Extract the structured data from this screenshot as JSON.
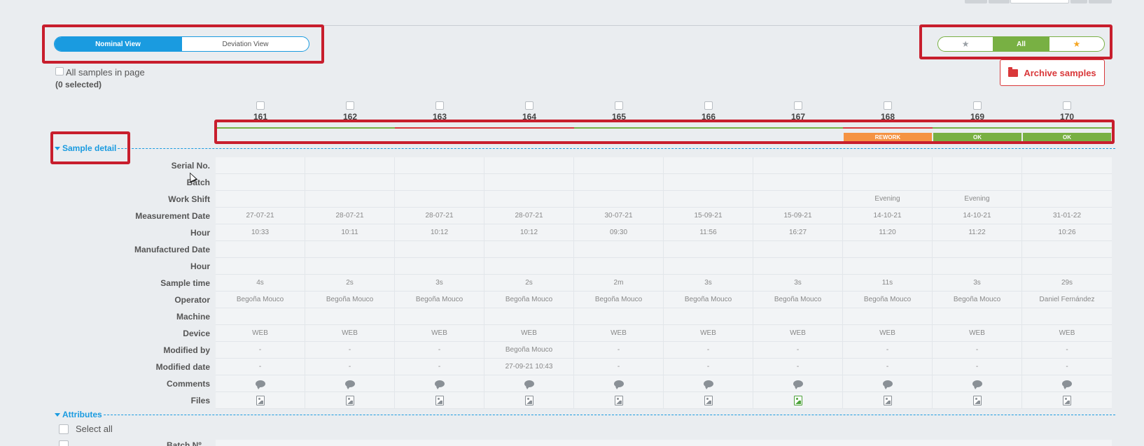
{
  "view_toggle": {
    "nominal": "Nominal View",
    "deviation": "Deviation View"
  },
  "fav_toggle": {
    "unstarred_icon": "star-icon",
    "all": "All",
    "starred_icon": "star-icon"
  },
  "selection": {
    "all_label": "All samples in page",
    "count_label": "(0 selected)"
  },
  "archive": {
    "label": "Archive samples",
    "icon": "folder-open-icon",
    "color": "#d9383a"
  },
  "columns": [
    "161",
    "162",
    "163",
    "164",
    "165",
    "166",
    "167",
    "168",
    "169",
    "170"
  ],
  "status": [
    {
      "line": "#78b043",
      "badge": ""
    },
    {
      "line": "#78b043",
      "badge": ""
    },
    {
      "line": "#d9383a",
      "badge": ""
    },
    {
      "line": "#d9383a",
      "badge": ""
    },
    {
      "line": "#78b043",
      "badge": ""
    },
    {
      "line": "#78b043",
      "badge": ""
    },
    {
      "line": "#78b043",
      "badge": ""
    },
    {
      "line": "#d9383a",
      "badge": "REWORK",
      "badge_color": "#f59342"
    },
    {
      "line": "#78b043",
      "badge": "OK",
      "badge_color": "#78b043"
    },
    {
      "line": "#78b043",
      "badge": "OK",
      "badge_color": "#78b043"
    }
  ],
  "section_sample_detail": "Sample detail",
  "section_attributes": "Attributes",
  "row_labels": [
    "Serial No.",
    "Batch",
    "Work Shift",
    "Measurement Date",
    "Hour",
    "Manufactured Date",
    "Hour",
    "Sample time",
    "Operator",
    "Machine",
    "Device",
    "Modified by",
    "Modified date",
    "Comments",
    "Files"
  ],
  "rows": {
    "serial": [
      "",
      "",
      "",
      "",
      "",
      "",
      "",
      "",
      "",
      ""
    ],
    "batch": [
      "",
      "",
      "",
      "",
      "",
      "",
      "",
      "",
      "",
      ""
    ],
    "shift": [
      "",
      "",
      "",
      "",
      "",
      "",
      "",
      "Evening",
      "Evening",
      ""
    ],
    "mdate": [
      "27-07-21",
      "28-07-21",
      "28-07-21",
      "28-07-21",
      "30-07-21",
      "15-09-21",
      "15-09-21",
      "14-10-21",
      "14-10-21",
      "31-01-22"
    ],
    "mhour": [
      "10:33",
      "10:11",
      "10:12",
      "10:12",
      "09:30",
      "11:56",
      "16:27",
      "11:20",
      "11:22",
      "10:26"
    ],
    "fdate": [
      "",
      "",
      "",
      "",
      "",
      "",
      "",
      "",
      "",
      ""
    ],
    "fhour": [
      "",
      "",
      "",
      "",
      "",
      "",
      "",
      "",
      "",
      ""
    ],
    "stime": [
      "4s",
      "2s",
      "3s",
      "2s",
      "2m",
      "3s",
      "3s",
      "11s",
      "3s",
      "29s"
    ],
    "operator": [
      "Begoña Mouco",
      "Begoña Mouco",
      "Begoña Mouco",
      "Begoña Mouco",
      "Begoña Mouco",
      "Begoña Mouco",
      "Begoña Mouco",
      "Begoña Mouco",
      "Begoña Mouco",
      "Daniel Fernández"
    ],
    "machine": [
      "",
      "",
      "",
      "",
      "",
      "",
      "",
      "",
      "",
      ""
    ],
    "device": [
      "WEB",
      "WEB",
      "WEB",
      "WEB",
      "WEB",
      "WEB",
      "WEB",
      "WEB",
      "WEB",
      "WEB"
    ],
    "modby": [
      "-",
      "-",
      "-",
      "Begoña Mouco",
      "-",
      "-",
      "-",
      "-",
      "-",
      "-"
    ],
    "moddate": [
      "-",
      "-",
      "-",
      "27-09-21 10:43",
      "-",
      "-",
      "-",
      "-",
      "-",
      "-"
    ]
  },
  "comments_icon": "comment-icon",
  "files_icon": "image-file-icon",
  "files_has_attachment": [
    false,
    false,
    false,
    false,
    false,
    false,
    true,
    false,
    false,
    false
  ],
  "select_all_label": "Select all",
  "partial_row_label": "Batch Nº"
}
